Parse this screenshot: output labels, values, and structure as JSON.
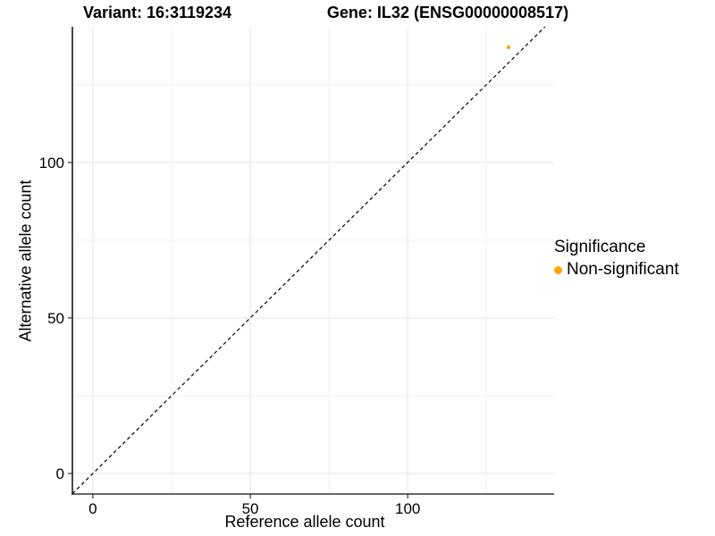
{
  "header": {
    "variant_title": "Variant: 16:3119234",
    "gene_title": "Gene: IL32 (ENSG00000008517)"
  },
  "chart_data": {
    "type": "scatter",
    "xlabel": "Reference allele count",
    "ylabel": "Alternative allele count",
    "xlim": [
      -6.5,
      146.5
    ],
    "ylim": [
      -6.6,
      143.6
    ],
    "x_ticks": [
      0,
      50,
      100
    ],
    "y_ticks": [
      0,
      50,
      100
    ],
    "x_minor_ticks": [
      25,
      75,
      125
    ],
    "y_minor_ticks": [
      25,
      75,
      125
    ],
    "grid": true,
    "legend_position": "right",
    "identity_line": {
      "slope": 1,
      "intercept": 0,
      "style": "dashed",
      "color": "#000000"
    },
    "series": [
      {
        "name": "Non-significant",
        "color": "#FFA500",
        "points": [
          {
            "x": 132,
            "y": 137
          }
        ]
      }
    ]
  },
  "legend": {
    "title": "Significance",
    "items": [
      {
        "label": "Non-significant",
        "color": "#FFA500"
      }
    ]
  }
}
